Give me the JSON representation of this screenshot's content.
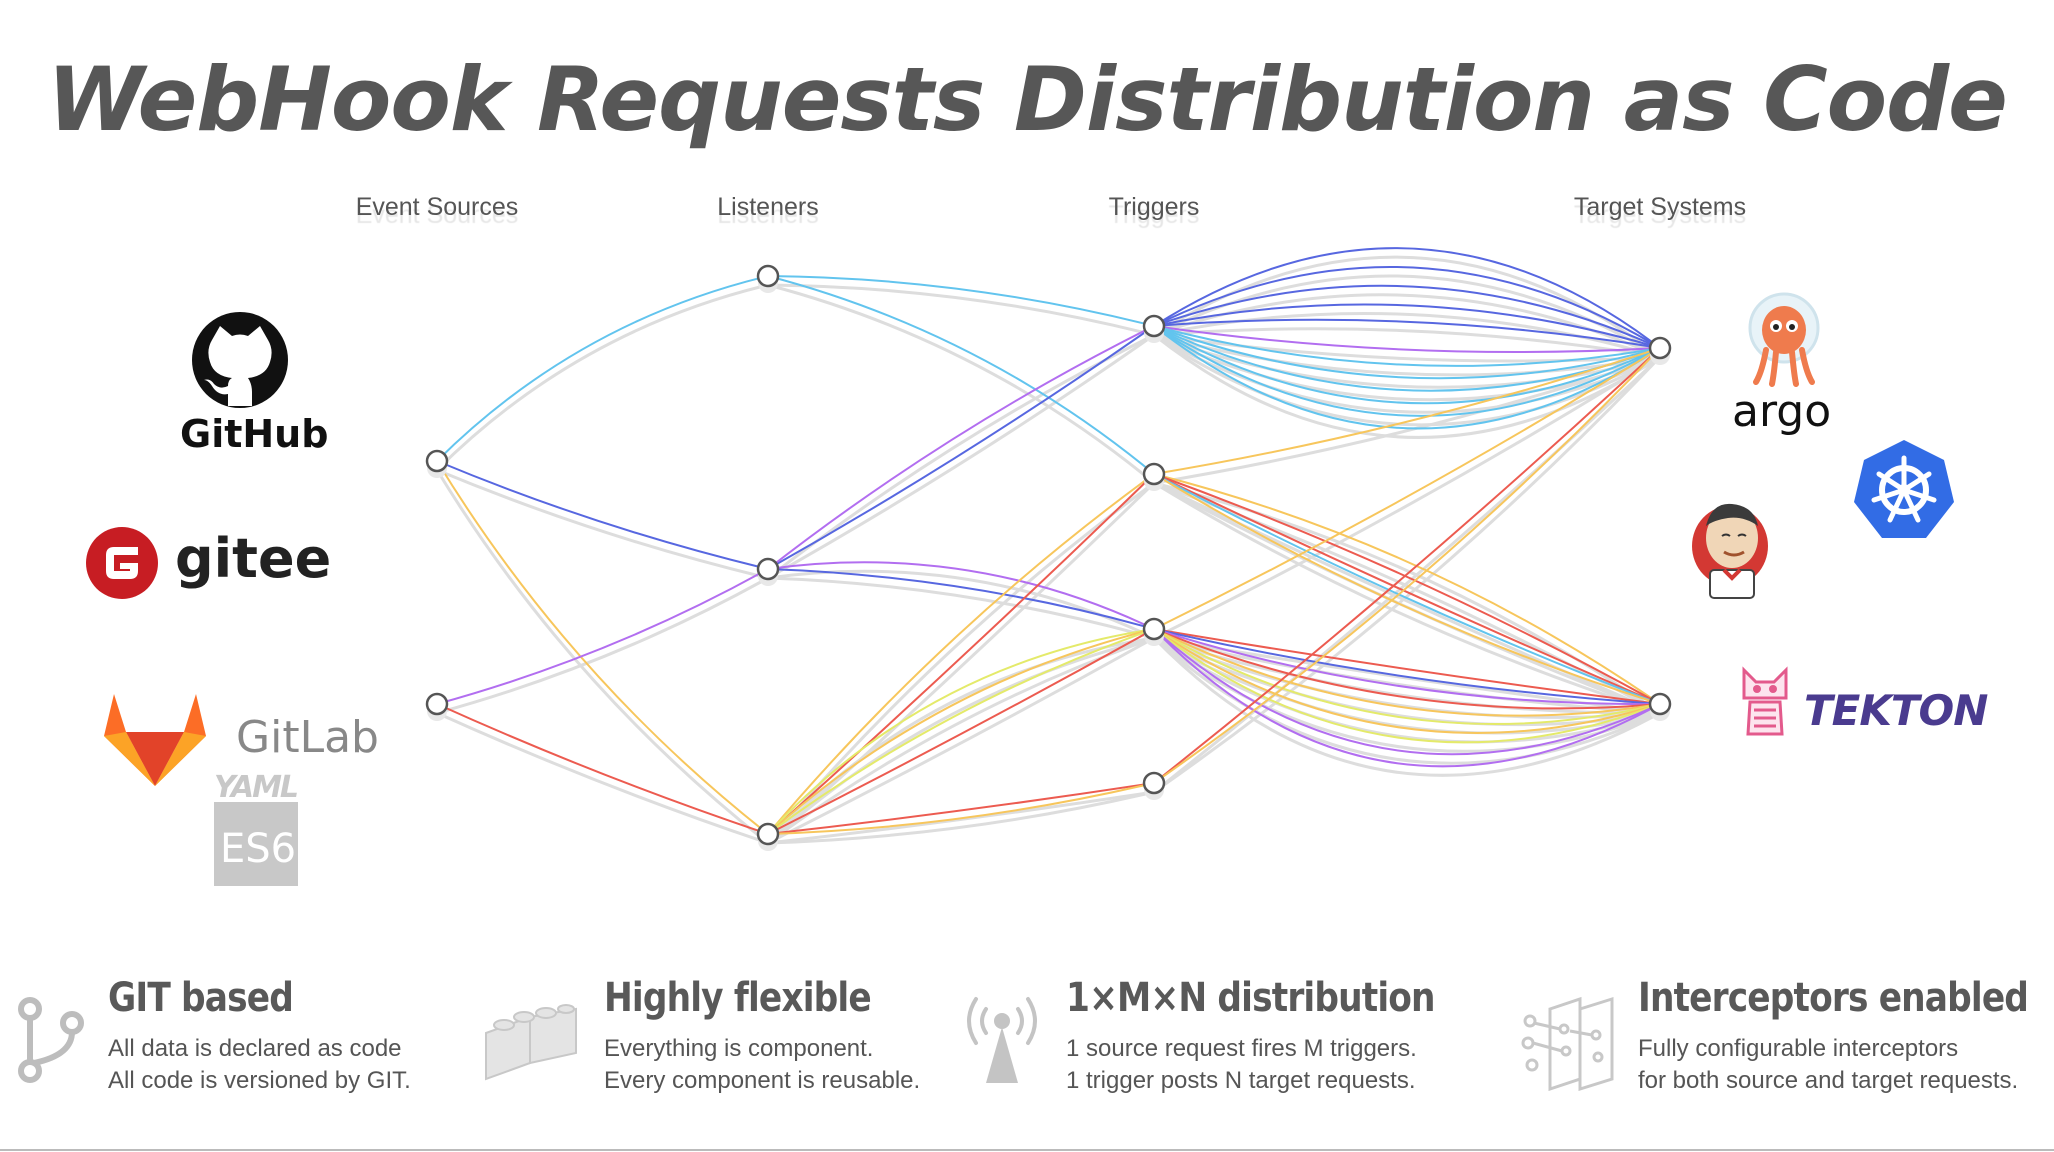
{
  "title": "WebHook Requests Distribution as Code",
  "columns": [
    "Event Sources",
    "Listeners",
    "Triggers",
    "Target Systems"
  ],
  "colors": {
    "cyan": "#62c4ee",
    "blue": "#5767e0",
    "purple": "#b26ef0",
    "orange": "#f7c65c",
    "red": "#ec5b50",
    "yellow": "#e4ea6a",
    "node_stroke": "#555555",
    "shadow": "#dddddd"
  },
  "logos": {
    "github": "GitHub",
    "gitee": "gitee",
    "gitlab": "GitLab",
    "yaml": "YAML",
    "es6": "ES6",
    "argo": "argo",
    "tekton": "TEKTON"
  },
  "features": [
    {
      "icon": "git-branch-icon",
      "title": "GIT based",
      "line1": "All data is declared as code",
      "line2": "All code is versioned by GIT."
    },
    {
      "icon": "lego-bricks-icon",
      "title": "Highly flexible",
      "line1": "Everything is component.",
      "line2": "Every component is reusable."
    },
    {
      "icon": "broadcast-antenna-icon",
      "title": "1×M×N distribution",
      "line1": "1 source request fires M triggers.",
      "line2": "1 trigger posts N target requests."
    },
    {
      "icon": "filter-layers-icon",
      "title": "Interceptors enabled",
      "line1": "Fully configurable interceptors",
      "line2": "for both source and target requests."
    }
  ]
}
